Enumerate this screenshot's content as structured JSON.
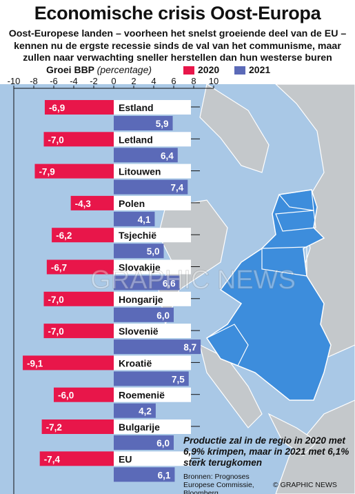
{
  "title": "Economische crisis Oost-Europa",
  "subtitle": "Oost-Europese landen – voorheen het snelst groeiende deel van de EU – kennen nu de ergste recessie sinds de val van het communisme, maar zullen naar verwachting sneller herstellen dan hun westerse buren",
  "legend": {
    "measure": "Groei BBP",
    "unit": "(percentage)",
    "items": [
      {
        "label": "2020",
        "color": "#e8164a"
      },
      {
        "label": "2021",
        "color": "#5b6ab8"
      }
    ]
  },
  "note": "Productie zal in de regio in 2020 met 6,9% krimpen, maar in 2021 met 6,1% sterk terugkomen",
  "source": "Bronnen: Prognoses Europese Commissie, Bloomberg",
  "credit": "© GRAPHIC NEWS",
  "watermark": "GRAPHIC NEWS",
  "chart_data": {
    "type": "bar",
    "orientation": "horizontal",
    "categories": [
      "Estland",
      "Letland",
      "Litouwen",
      "Polen",
      "Tsjechië",
      "Slovakije",
      "Hongarije",
      "Slovenië",
      "Kroatië",
      "Roemenië",
      "Bulgarije",
      "EU"
    ],
    "series": [
      {
        "name": "2020",
        "color": "#e8164a",
        "values": [
          -6.9,
          -7.0,
          -7.9,
          -4.3,
          -6.2,
          -6.7,
          -7.0,
          -7.0,
          -9.1,
          -6.0,
          -7.2,
          -7.4
        ],
        "labels": [
          "-6,9",
          "-7,0",
          "-7,9",
          "-4,3",
          "-6,2",
          "-6,7",
          "-7,0",
          "-7,0",
          "-9,1",
          "-6,0",
          "-7,2",
          "-7,4"
        ]
      },
      {
        "name": "2021",
        "color": "#5b6ab8",
        "values": [
          5.9,
          6.4,
          7.4,
          4.1,
          5.0,
          6.6,
          6.0,
          8.7,
          7.5,
          4.2,
          6.0,
          6.1
        ],
        "labels": [
          "5,9",
          "6,4",
          "7,4",
          "4,1",
          "5,0",
          "6,6",
          "6,0",
          "8,7",
          "7,5",
          "4,2",
          "6,0",
          "6,1"
        ]
      }
    ],
    "xlim": [
      -10,
      10
    ],
    "ticks": [
      -10,
      -8,
      -6,
      -4,
      -2,
      0,
      2,
      4,
      6,
      8,
      10
    ],
    "tick_labels": [
      "-10",
      "-8",
      "-6",
      "-4",
      "-2",
      "0",
      "2",
      "4",
      "6",
      "8",
      "10"
    ],
    "grid": false,
    "legend_position": "top"
  },
  "colors": {
    "sea": "#a9c8e6",
    "land_other": "#c4c8cb",
    "land_eu": "#a9c8e6",
    "region": "#3d8ddc",
    "bar_2020": "#e8164a",
    "bar_2021": "#5b6ab8"
  }
}
